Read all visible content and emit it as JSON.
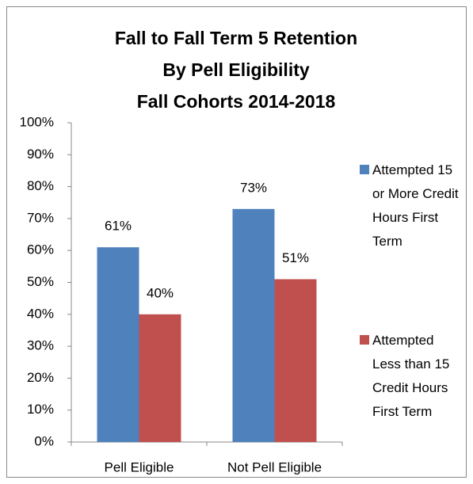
{
  "chart_data": {
    "type": "bar",
    "title": [
      "Fall to Fall Term 5 Retention",
      "By Pell Eligibility",
      "Fall Cohorts 2014-2018"
    ],
    "categories": [
      "Pell Eligible",
      "Not Pell Eligible"
    ],
    "series": [
      {
        "name": "Attempted 15 or More Credit Hours First Term",
        "color": "#4f81bd",
        "values": [
          61,
          73
        ],
        "value_labels": [
          "61%",
          "73%"
        ]
      },
      {
        "name": "Attempted Less than 15 Credit Hours First Term",
        "color": "#c0504d",
        "values": [
          40,
          51
        ],
        "value_labels": [
          "40%",
          "51%"
        ]
      }
    ],
    "ylim": [
      0,
      100
    ],
    "yticks": [
      {
        "value": 0,
        "label": "0%"
      },
      {
        "value": 10,
        "label": "10%"
      },
      {
        "value": 20,
        "label": "20%"
      },
      {
        "value": 30,
        "label": "30%"
      },
      {
        "value": 40,
        "label": "40%"
      },
      {
        "value": 50,
        "label": "50%"
      },
      {
        "value": 60,
        "label": "60%"
      },
      {
        "value": 70,
        "label": "70%"
      },
      {
        "value": 80,
        "label": "80%"
      },
      {
        "value": 90,
        "label": "90%"
      },
      {
        "value": 100,
        "label": "100%"
      }
    ],
    "grid": false,
    "legend": "right"
  }
}
